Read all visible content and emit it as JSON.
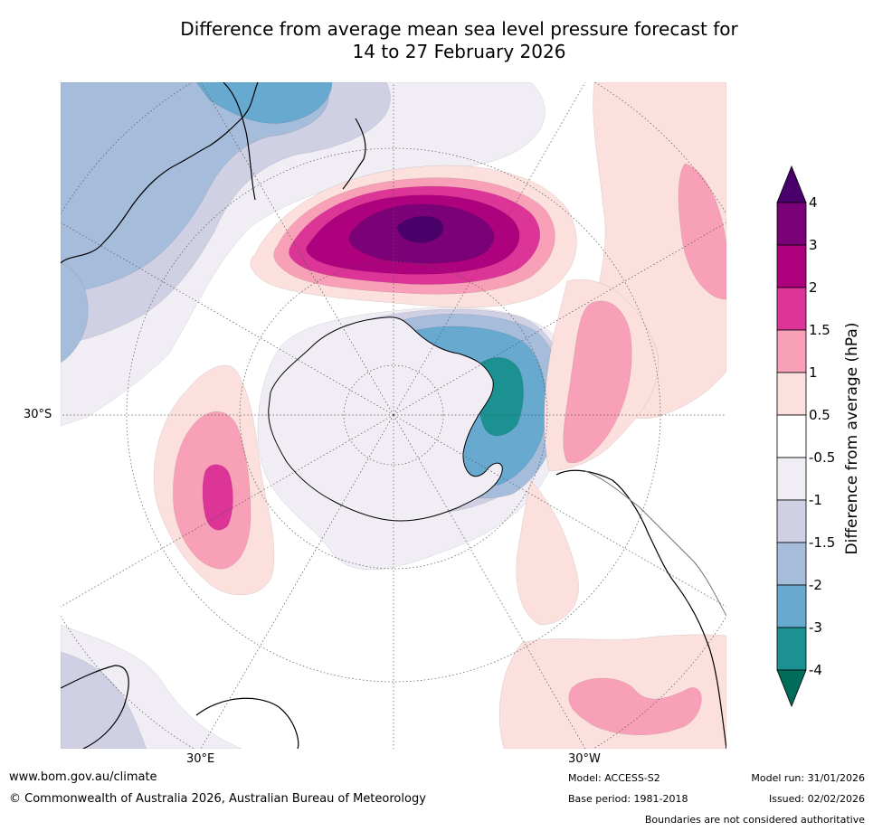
{
  "title": {
    "line1": "Difference from average mean sea level pressure forecast for",
    "line2": "14 to 27 February 2026"
  },
  "map": {
    "projection": "south polar stereographic",
    "lat_label": "30°S",
    "lon_labels": {
      "east": "30°E",
      "west": "30°W"
    },
    "colors": {
      "ocean": "#ffffff",
      "neg_0_5_to_1": "#f1edf4",
      "neg_1_to_1_5": "#d0d0e5",
      "neg_1_5_to_2": "#a6bcdb",
      "neg_2_to_3": "#67a9cf",
      "neg_3_to_4": "#1b9191",
      "pos_0_5_to_1": "#fbe0de",
      "pos_1_to_1_5": "#f8a0b8",
      "pos_1_5_to_2": "#dd3497",
      "pos_2_to_3": "#ae017e",
      "pos_3_to_4": "#7a0177",
      "pos_above_4": "#49006a",
      "coastline": "#000000",
      "border": "#777777",
      "graticule": "#555555"
    }
  },
  "legend": {
    "title": "Difference from average (hPa)",
    "ticks": [
      "4",
      "3",
      "2",
      "1.5",
      "1",
      "0.5",
      "-0.5",
      "-1",
      "-1.5",
      "-2",
      "-3",
      "-4"
    ],
    "colors_top_to_bottom": [
      "#7a0177",
      "#ae017e",
      "#dd3497",
      "#f8a0b8",
      "#fbe0de",
      "#ffffff",
      "#f1edf4",
      "#d0d0e5",
      "#a6bcdb",
      "#67a9cf",
      "#1b9191"
    ],
    "top_arrow_color": "#49006a",
    "bottom_arrow_color": "#006d5b"
  },
  "footer": {
    "url": "www.bom.gov.au/climate",
    "copyright": "© Commonwealth of Australia 2026, Australian Bureau of Meteorology",
    "model": "Model: ACCESS-S2",
    "base_period": "Base period: 1981-2018",
    "model_run": "Model run: 31/01/2026",
    "issued": "Issued: 02/02/2026",
    "disclaimer": "Boundaries are not considered authoritative"
  }
}
